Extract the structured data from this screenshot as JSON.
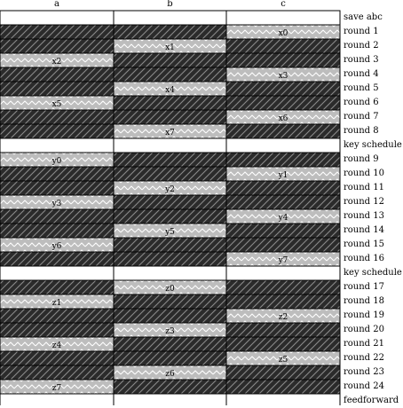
{
  "column_headers": [
    "a",
    "b",
    "c"
  ],
  "rows": [
    {
      "label": "save abc",
      "kind": "blank",
      "highlight": null,
      "tag": ""
    },
    {
      "label": "round 1",
      "kind": "round",
      "highlight": "c",
      "tag": "x0"
    },
    {
      "label": "round 2",
      "kind": "round",
      "highlight": "b",
      "tag": "x1"
    },
    {
      "label": "round 3",
      "kind": "round",
      "highlight": "a",
      "tag": "x2"
    },
    {
      "label": "round 4",
      "kind": "round",
      "highlight": "c",
      "tag": "x3"
    },
    {
      "label": "round 5",
      "kind": "round",
      "highlight": "b",
      "tag": "x4"
    },
    {
      "label": "round 6",
      "kind": "round",
      "highlight": "a",
      "tag": "x5"
    },
    {
      "label": "round 7",
      "kind": "round",
      "highlight": "c",
      "tag": "x6"
    },
    {
      "label": "round 8",
      "kind": "round",
      "highlight": "b",
      "tag": "x7"
    },
    {
      "label": "key schedule",
      "kind": "blank",
      "highlight": null,
      "tag": ""
    },
    {
      "label": "round 9",
      "kind": "round",
      "highlight": "a",
      "tag": "y0"
    },
    {
      "label": "round 10",
      "kind": "round",
      "highlight": "c",
      "tag": "y1"
    },
    {
      "label": "round 11",
      "kind": "round",
      "highlight": "b",
      "tag": "y2"
    },
    {
      "label": "round 12",
      "kind": "round",
      "highlight": "a",
      "tag": "y3"
    },
    {
      "label": "round 13",
      "kind": "round",
      "highlight": "c",
      "tag": "y4"
    },
    {
      "label": "round 14",
      "kind": "round",
      "highlight": "b",
      "tag": "y5"
    },
    {
      "label": "round 15",
      "kind": "round",
      "highlight": "a",
      "tag": "y6"
    },
    {
      "label": "round 16",
      "kind": "round",
      "highlight": "c",
      "tag": "y7"
    },
    {
      "label": "key schedule",
      "kind": "blank",
      "highlight": null,
      "tag": ""
    },
    {
      "label": "round 17",
      "kind": "round",
      "highlight": "b",
      "tag": "z0"
    },
    {
      "label": "round 18",
      "kind": "round",
      "highlight": "a",
      "tag": "z1"
    },
    {
      "label": "round 19",
      "kind": "round",
      "highlight": "c",
      "tag": "z2"
    },
    {
      "label": "round 20",
      "kind": "round",
      "highlight": "b",
      "tag": "z3"
    },
    {
      "label": "round 21",
      "kind": "round",
      "highlight": "a",
      "tag": "z4"
    },
    {
      "label": "round 22",
      "kind": "round",
      "highlight": "c",
      "tag": "z5"
    },
    {
      "label": "round 23",
      "kind": "round",
      "highlight": "b",
      "tag": "z6"
    },
    {
      "label": "round 24",
      "kind": "round",
      "highlight": "a",
      "tag": "z7"
    },
    {
      "label": "feedforward",
      "kind": "blank",
      "highlight": null,
      "tag": ""
    }
  ],
  "colors": {
    "dark_fill": "#2b2b2b",
    "light_fill": "#bdbdbd",
    "line": "#000000",
    "blank": "#ffffff"
  }
}
